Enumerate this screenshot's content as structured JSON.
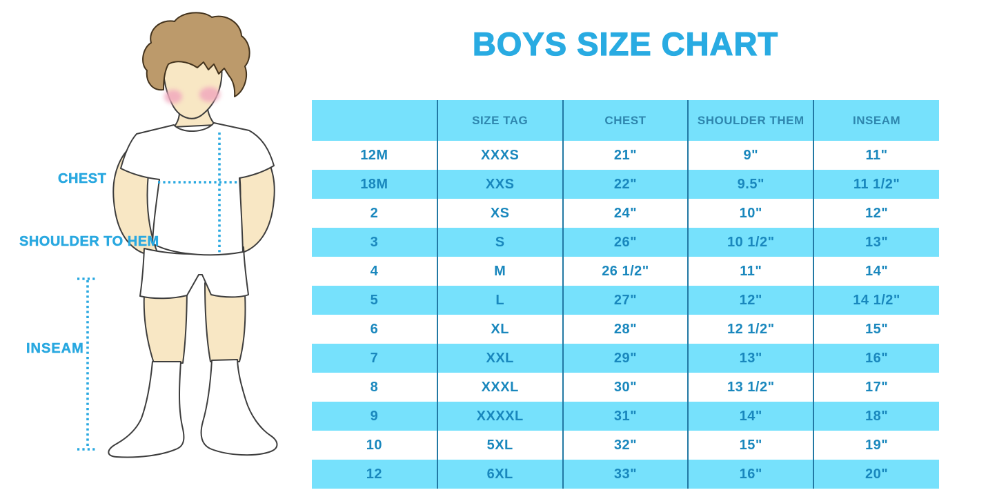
{
  "title": "BOYS SIZE CHART",
  "colors": {
    "title_blue": "#29ABE2",
    "row_blue": "#76E1FC",
    "header_text_blue": "#2E86AE",
    "cell_text_blue": "#1987BD",
    "grid_line_blue": "#2278A3",
    "dotted_line_blue": "#29A8E0",
    "skin": "#F8E7C4",
    "hair_brown": "#BC9A6B",
    "cheek_pink": "#F1A9BE"
  },
  "figure_labels": {
    "chest": "CHEST",
    "shoulder_to_hem": "SHOULDER TO HEM",
    "inseam": "INSEAM"
  },
  "chart_data": {
    "type": "table",
    "title": "BOYS SIZE CHART",
    "columns": [
      "",
      "SIZE TAG",
      "CHEST",
      "SHOULDER THEM",
      "INSEAM"
    ],
    "rows": [
      [
        "12M",
        "XXXS",
        "21\"",
        "9\"",
        "11\""
      ],
      [
        "18M",
        "XXS",
        "22\"",
        "9.5\"",
        "11 1/2\""
      ],
      [
        "2",
        "XS",
        "24\"",
        "10\"",
        "12\""
      ],
      [
        "3",
        "S",
        "26\"",
        "10 1/2\"",
        "13\""
      ],
      [
        "4",
        "M",
        "26 1/2\"",
        "11\"",
        "14\""
      ],
      [
        "5",
        "L",
        "27\"",
        "12\"",
        "14 1/2\""
      ],
      [
        "6",
        "XL",
        "28\"",
        "12 1/2\"",
        "15\""
      ],
      [
        "7",
        "XXL",
        "29\"",
        "13\"",
        "16\""
      ],
      [
        "8",
        "XXXL",
        "30\"",
        "13 1/2\"",
        "17\""
      ],
      [
        "9",
        "XXXXL",
        "31\"",
        "14\"",
        "18\""
      ],
      [
        "10",
        "5XL",
        "32\"",
        "15\"",
        "19\""
      ],
      [
        "12",
        "6XL",
        "33\"",
        "16\"",
        "20\""
      ]
    ]
  }
}
